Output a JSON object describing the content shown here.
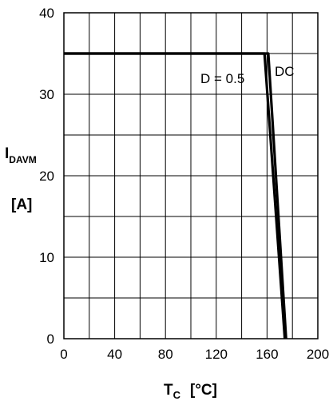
{
  "chart_data": {
    "type": "line",
    "title": "",
    "xlabel": {
      "main": "T",
      "sub": "C",
      "unit": "[°C]"
    },
    "ylabel": {
      "main": "I",
      "sub": "DAVM",
      "unit": "[A]"
    },
    "xlim": [
      0,
      200
    ],
    "ylim": [
      0,
      40
    ],
    "x_ticks": [
      0,
      40,
      80,
      120,
      160,
      200
    ],
    "y_ticks": [
      0,
      10,
      20,
      30,
      40
    ],
    "grid": true,
    "grid_x_step": 20,
    "grid_y_step": 5,
    "series": [
      {
        "name": "DC",
        "x": [
          0,
          161,
          175
        ],
        "y": [
          35,
          35,
          0
        ]
      },
      {
        "name": "D = 0.5",
        "x": [
          0,
          158,
          174
        ],
        "y": [
          35,
          35,
          0
        ]
      }
    ],
    "annotations": [
      "D = 0.5",
      "DC"
    ],
    "line_color": "#000000"
  }
}
